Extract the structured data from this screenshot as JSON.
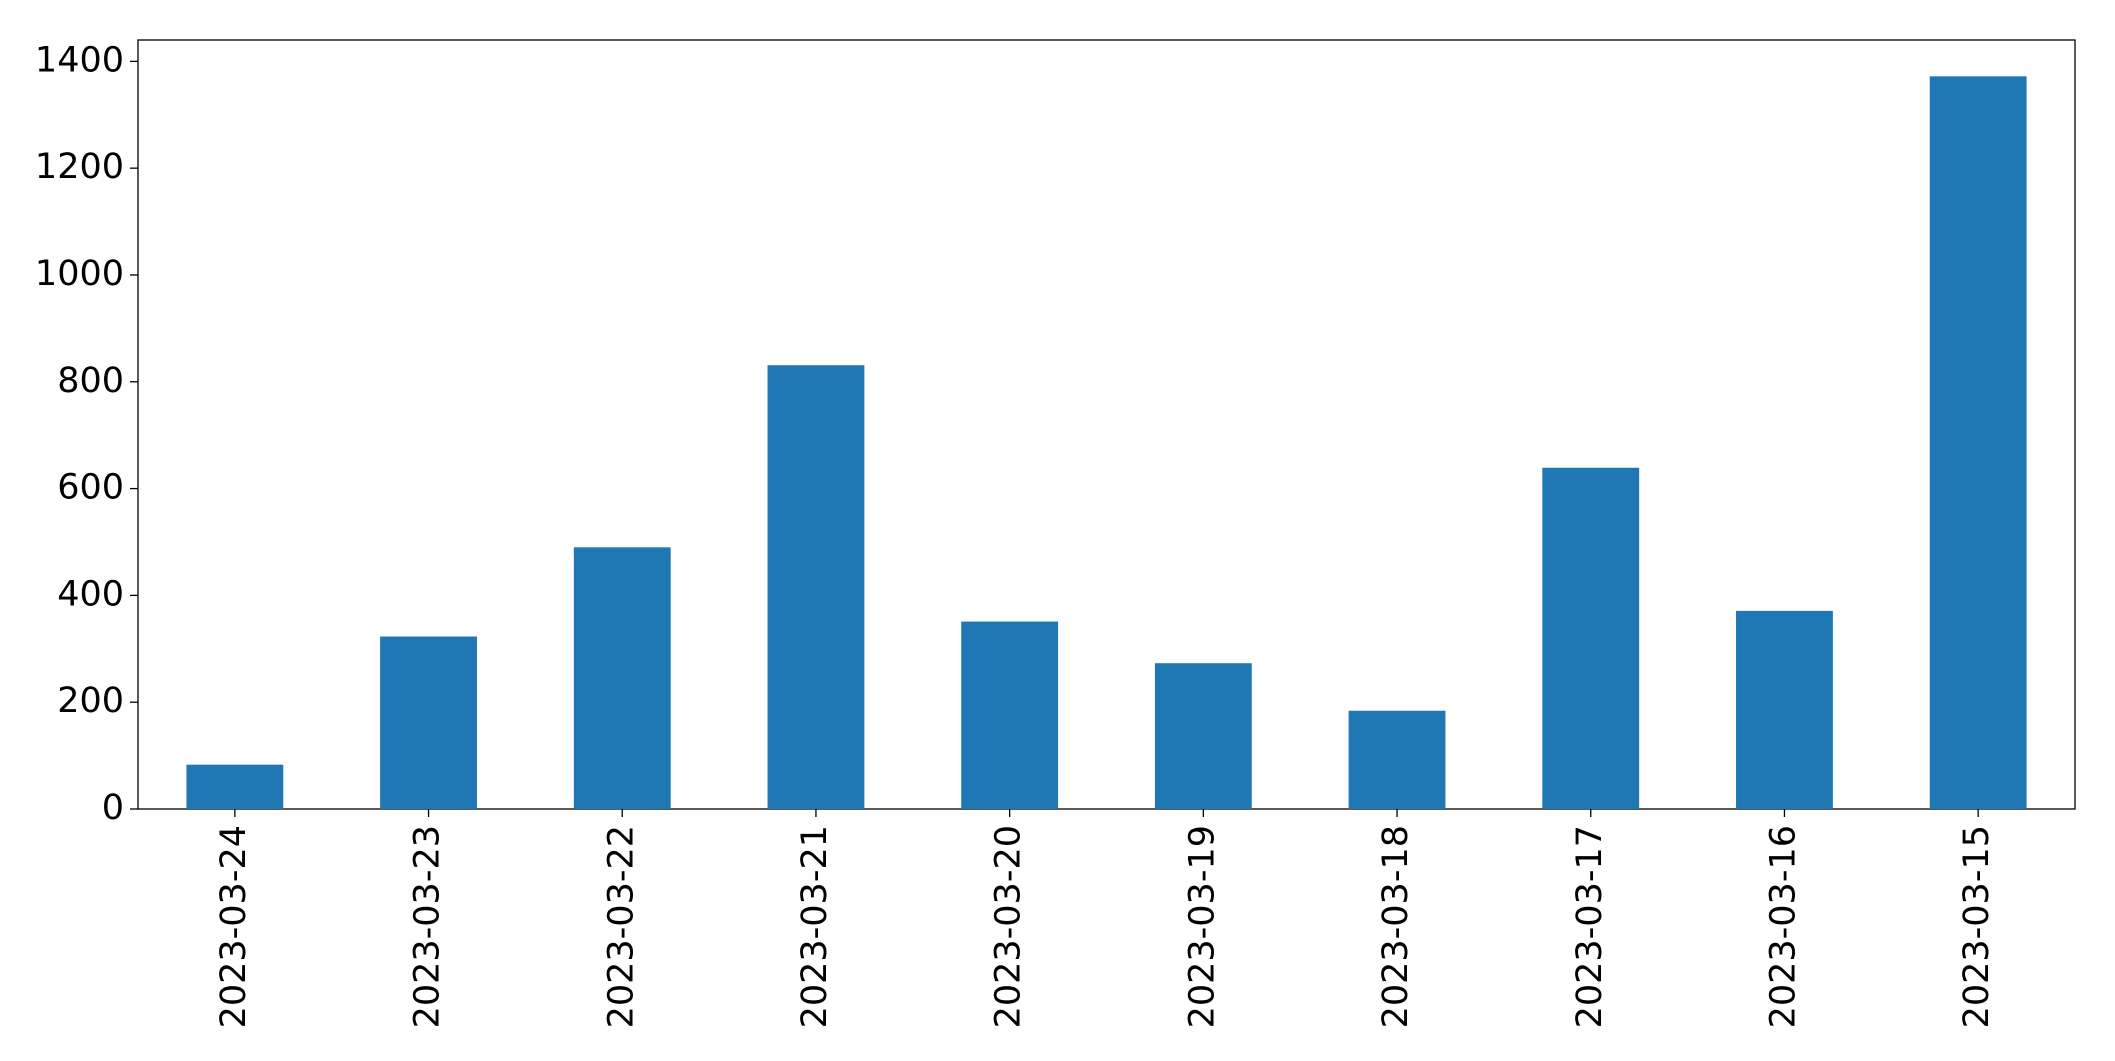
{
  "chart_data": {
    "type": "bar",
    "categories": [
      "2023-03-24",
      "2023-03-23",
      "2023-03-22",
      "2023-03-21",
      "2023-03-20",
      "2023-03-19",
      "2023-03-18",
      "2023-03-17",
      "2023-03-16",
      "2023-03-15"
    ],
    "values": [
      83,
      323,
      490,
      831,
      351,
      273,
      184,
      639,
      371,
      1372
    ],
    "color": "#1f77b4",
    "ylim": [
      0,
      1440
    ],
    "yticks": [
      0,
      200,
      400,
      600,
      800,
      1000,
      1200,
      1400
    ],
    "grid": false
  }
}
